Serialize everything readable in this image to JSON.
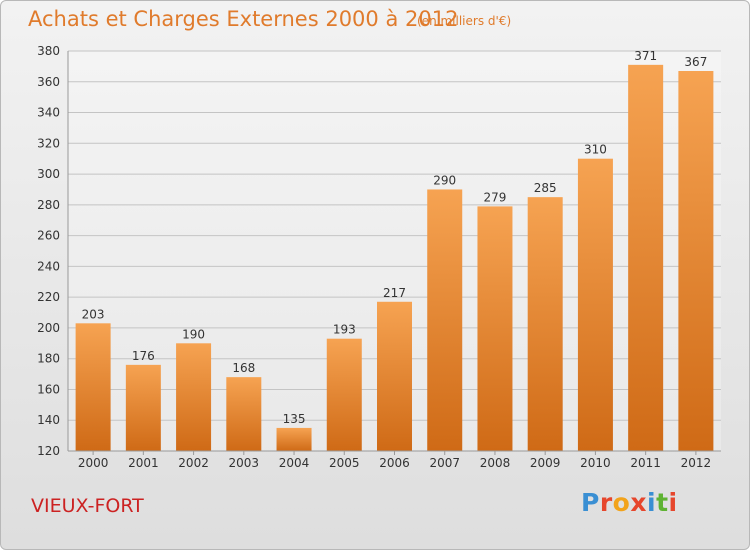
{
  "header": {
    "title": "Achats et Charges Externes 2000 à 2012",
    "subtitle": "(en milliers d'€)"
  },
  "footer": {
    "commune": "VIEUX-FORT",
    "brand": "Proxiti"
  },
  "colors": {
    "accent": "#e07b2c",
    "commune": "#cc2222",
    "bar_light": "#f6a352",
    "bar_dark": "#cf6a16",
    "logo_letters": [
      "#3a8fd3",
      "#e6462c",
      "#f2a31b",
      "#e6462c",
      "#3a8fd3",
      "#5fb333",
      "#e6462c"
    ]
  },
  "chart_data": {
    "type": "bar",
    "title": "Achats et Charges Externes 2000 à 2012",
    "subtitle": "(en milliers d'€)",
    "categories": [
      "2000",
      "2001",
      "2002",
      "2003",
      "2004",
      "2005",
      "2006",
      "2007",
      "2008",
      "2009",
      "2010",
      "2011",
      "2012"
    ],
    "values": [
      203,
      176,
      190,
      168,
      135,
      193,
      217,
      290,
      279,
      285,
      310,
      371,
      367
    ],
    "ylim": [
      120,
      380
    ],
    "yticks": [
      120,
      140,
      160,
      180,
      200,
      220,
      240,
      260,
      280,
      300,
      320,
      340,
      360,
      380
    ],
    "grid": true,
    "xlabel": "",
    "ylabel": ""
  }
}
